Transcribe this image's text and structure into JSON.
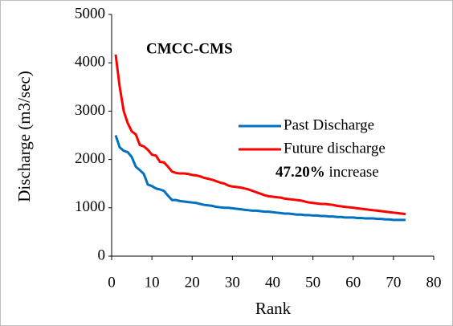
{
  "chart_data": {
    "type": "line",
    "xlabel": "Rank",
    "ylabel": "Discharge (m3/sec)",
    "annotations": [
      "CMCC-CMS",
      "47.20%",
      "increase"
    ],
    "xlim": [
      0,
      80
    ],
    "xticks": [
      0,
      10,
      20,
      30,
      40,
      50,
      60,
      70,
      80
    ],
    "ylim": [
      0,
      5000
    ],
    "yticks": [
      0,
      1000,
      2000,
      3000,
      4000,
      5000
    ],
    "grid": false,
    "legend": "right",
    "x": [
      1,
      2,
      3,
      4,
      5,
      6,
      7,
      8,
      9,
      10,
      11,
      12,
      13,
      14,
      15,
      16,
      17,
      18,
      19,
      20,
      21,
      22,
      23,
      24,
      25,
      26,
      27,
      28,
      29,
      30,
      31,
      32,
      33,
      34,
      35,
      36,
      37,
      38,
      39,
      40,
      41,
      42,
      43,
      44,
      45,
      46,
      47,
      48,
      49,
      50,
      51,
      52,
      53,
      54,
      55,
      56,
      57,
      58,
      59,
      60,
      61,
      62,
      63,
      64,
      65,
      66,
      67,
      68,
      69,
      70,
      71,
      72,
      73
    ],
    "series": [
      {
        "name": "Past Discharge",
        "color": "#0070c0",
        "values": [
          2500,
          2250,
          2180,
          2150,
          2050,
          1850,
          1780,
          1700,
          1480,
          1450,
          1400,
          1380,
          1350,
          1250,
          1160,
          1160,
          1140,
          1130,
          1120,
          1110,
          1100,
          1080,
          1060,
          1050,
          1040,
          1020,
          1010,
          1000,
          1000,
          990,
          980,
          970,
          960,
          950,
          940,
          940,
          930,
          920,
          920,
          910,
          900,
          890,
          880,
          880,
          870,
          860,
          860,
          850,
          850,
          840,
          840,
          830,
          830,
          820,
          820,
          810,
          810,
          800,
          800,
          800,
          790,
          790,
          780,
          780,
          780,
          770,
          770,
          760,
          760,
          750,
          750,
          750,
          750
        ]
      },
      {
        "name": "Future discharge",
        "color": "#ff0000",
        "values": [
          4170,
          3500,
          3000,
          2750,
          2580,
          2520,
          2300,
          2270,
          2200,
          2100,
          2080,
          1950,
          1940,
          1850,
          1750,
          1720,
          1710,
          1710,
          1700,
          1680,
          1670,
          1650,
          1620,
          1600,
          1580,
          1550,
          1520,
          1500,
          1460,
          1440,
          1430,
          1420,
          1400,
          1380,
          1350,
          1320,
          1290,
          1260,
          1240,
          1230,
          1220,
          1210,
          1190,
          1180,
          1170,
          1160,
          1150,
          1130,
          1110,
          1100,
          1090,
          1080,
          1080,
          1070,
          1060,
          1040,
          1030,
          1020,
          1010,
          1000,
          990,
          980,
          970,
          960,
          950,
          940,
          930,
          920,
          910,
          900,
          890,
          880,
          870
        ]
      }
    ]
  }
}
